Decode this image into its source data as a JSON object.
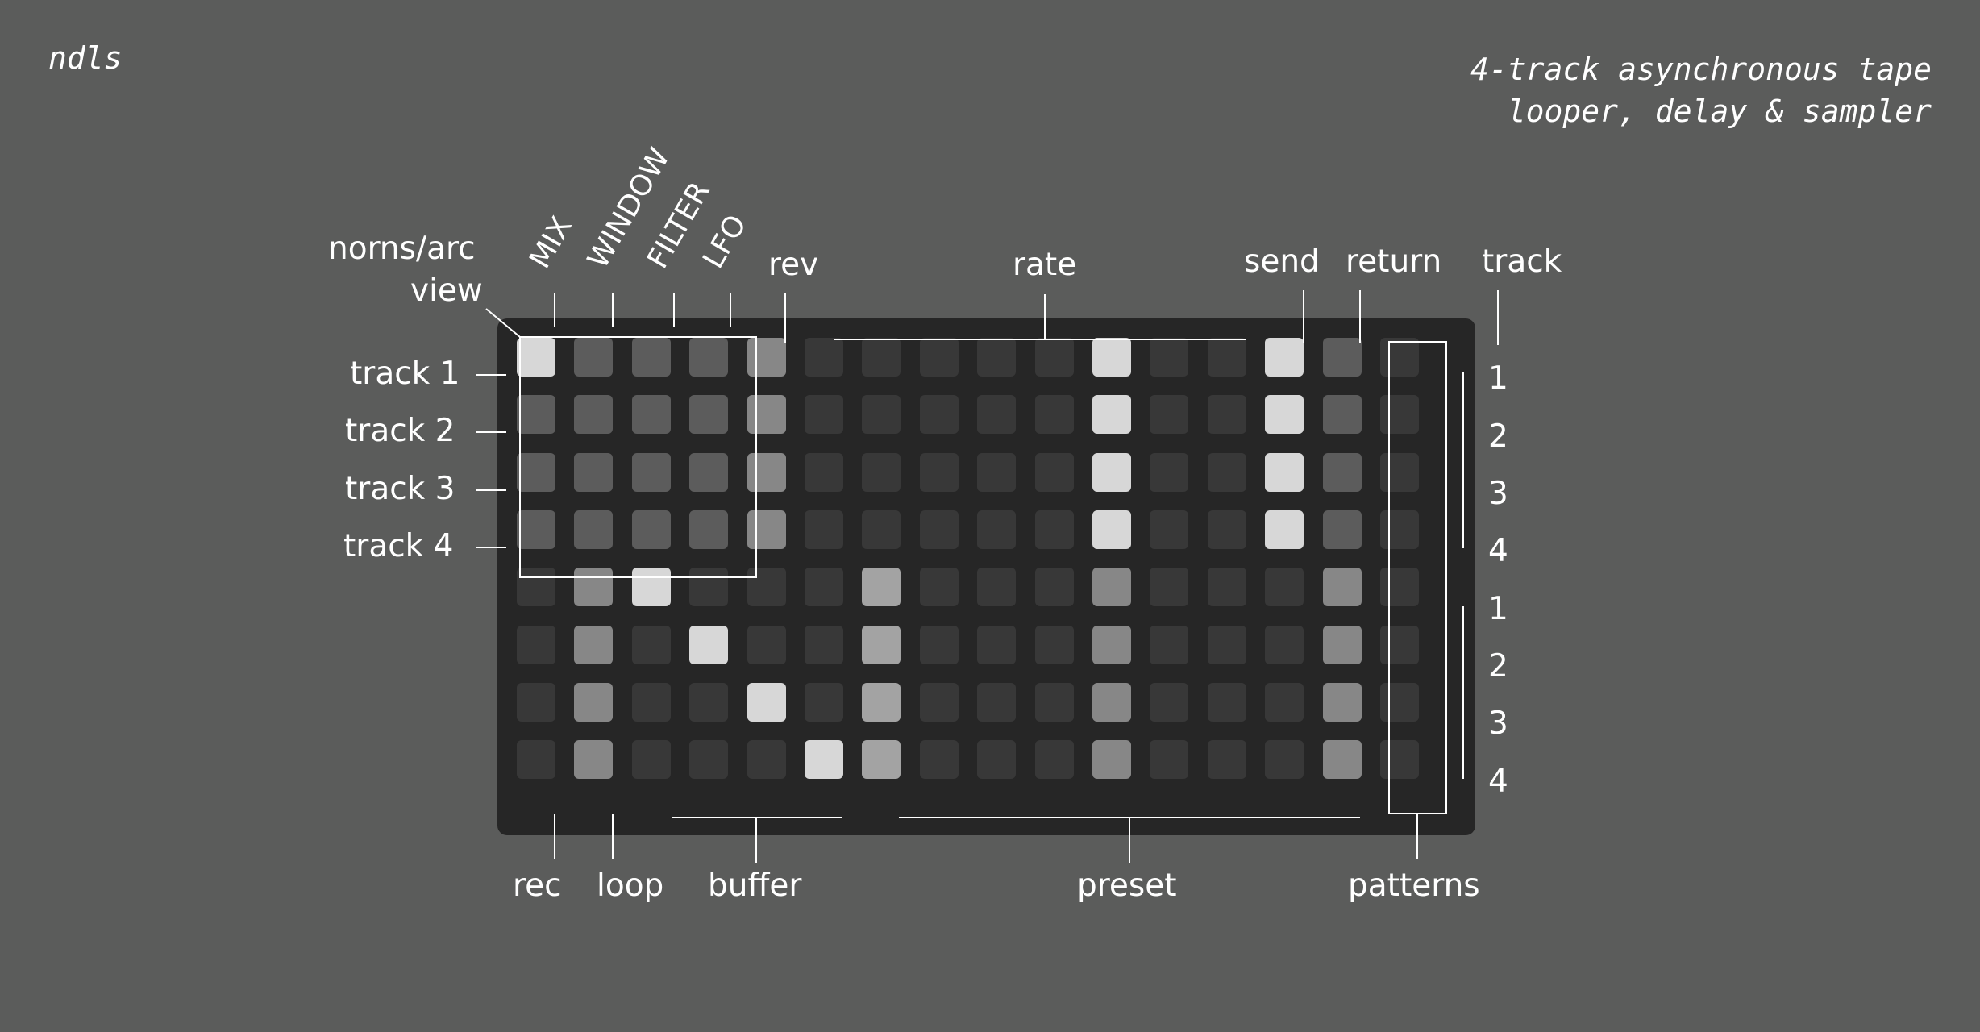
{
  "header": {
    "app_name": "ndls",
    "tagline_line1": "4-track asynchronous tape",
    "tagline_line2": "looper, delay & sampler"
  },
  "labels": {
    "norns_arc_line1": "norns/arc",
    "norns_arc_line2": "view",
    "mix": "MIX",
    "window": "WINDOW",
    "filter": "FILTER",
    "lfo": "LFO",
    "rev": "rev",
    "rate": "rate",
    "send": "send",
    "return": "return",
    "track": "track",
    "rec": "rec",
    "loop": "loop",
    "buffer": "buffer",
    "preset": "preset",
    "patterns": "patterns"
  },
  "row_labels": [
    "track 1",
    "track 2",
    "track 3",
    "track 4"
  ],
  "track_numbers": [
    "1",
    "2",
    "3",
    "4",
    "1",
    "2",
    "3",
    "4"
  ],
  "colors": {
    "background": "#5b5c5b",
    "grid_body": "#262626",
    "key_levels": [
      "#383838",
      "#5c5c5c",
      "#878787",
      "#a3a3a3",
      "#d7d7d7"
    ]
  },
  "grid_levels": [
    [
      4,
      1,
      1,
      1,
      2,
      0,
      0,
      0,
      0,
      0,
      4,
      0,
      0,
      4,
      1,
      0
    ],
    [
      1,
      1,
      1,
      1,
      2,
      0,
      0,
      0,
      0,
      0,
      4,
      0,
      0,
      4,
      1,
      0
    ],
    [
      1,
      1,
      1,
      1,
      2,
      0,
      0,
      0,
      0,
      0,
      4,
      0,
      0,
      4,
      1,
      0
    ],
    [
      1,
      1,
      1,
      1,
      2,
      0,
      0,
      0,
      0,
      0,
      4,
      0,
      0,
      4,
      1,
      0
    ],
    [
      0,
      2,
      4,
      0,
      0,
      0,
      3,
      0,
      0,
      0,
      2,
      0,
      0,
      0,
      2,
      0
    ],
    [
      0,
      2,
      0,
      4,
      0,
      0,
      3,
      0,
      0,
      0,
      2,
      0,
      0,
      0,
      2,
      0
    ],
    [
      0,
      2,
      0,
      0,
      4,
      0,
      3,
      0,
      0,
      0,
      2,
      0,
      0,
      0,
      2,
      0
    ],
    [
      0,
      2,
      0,
      0,
      0,
      4,
      3,
      0,
      0,
      0,
      2,
      0,
      0,
      0,
      2,
      0
    ]
  ]
}
